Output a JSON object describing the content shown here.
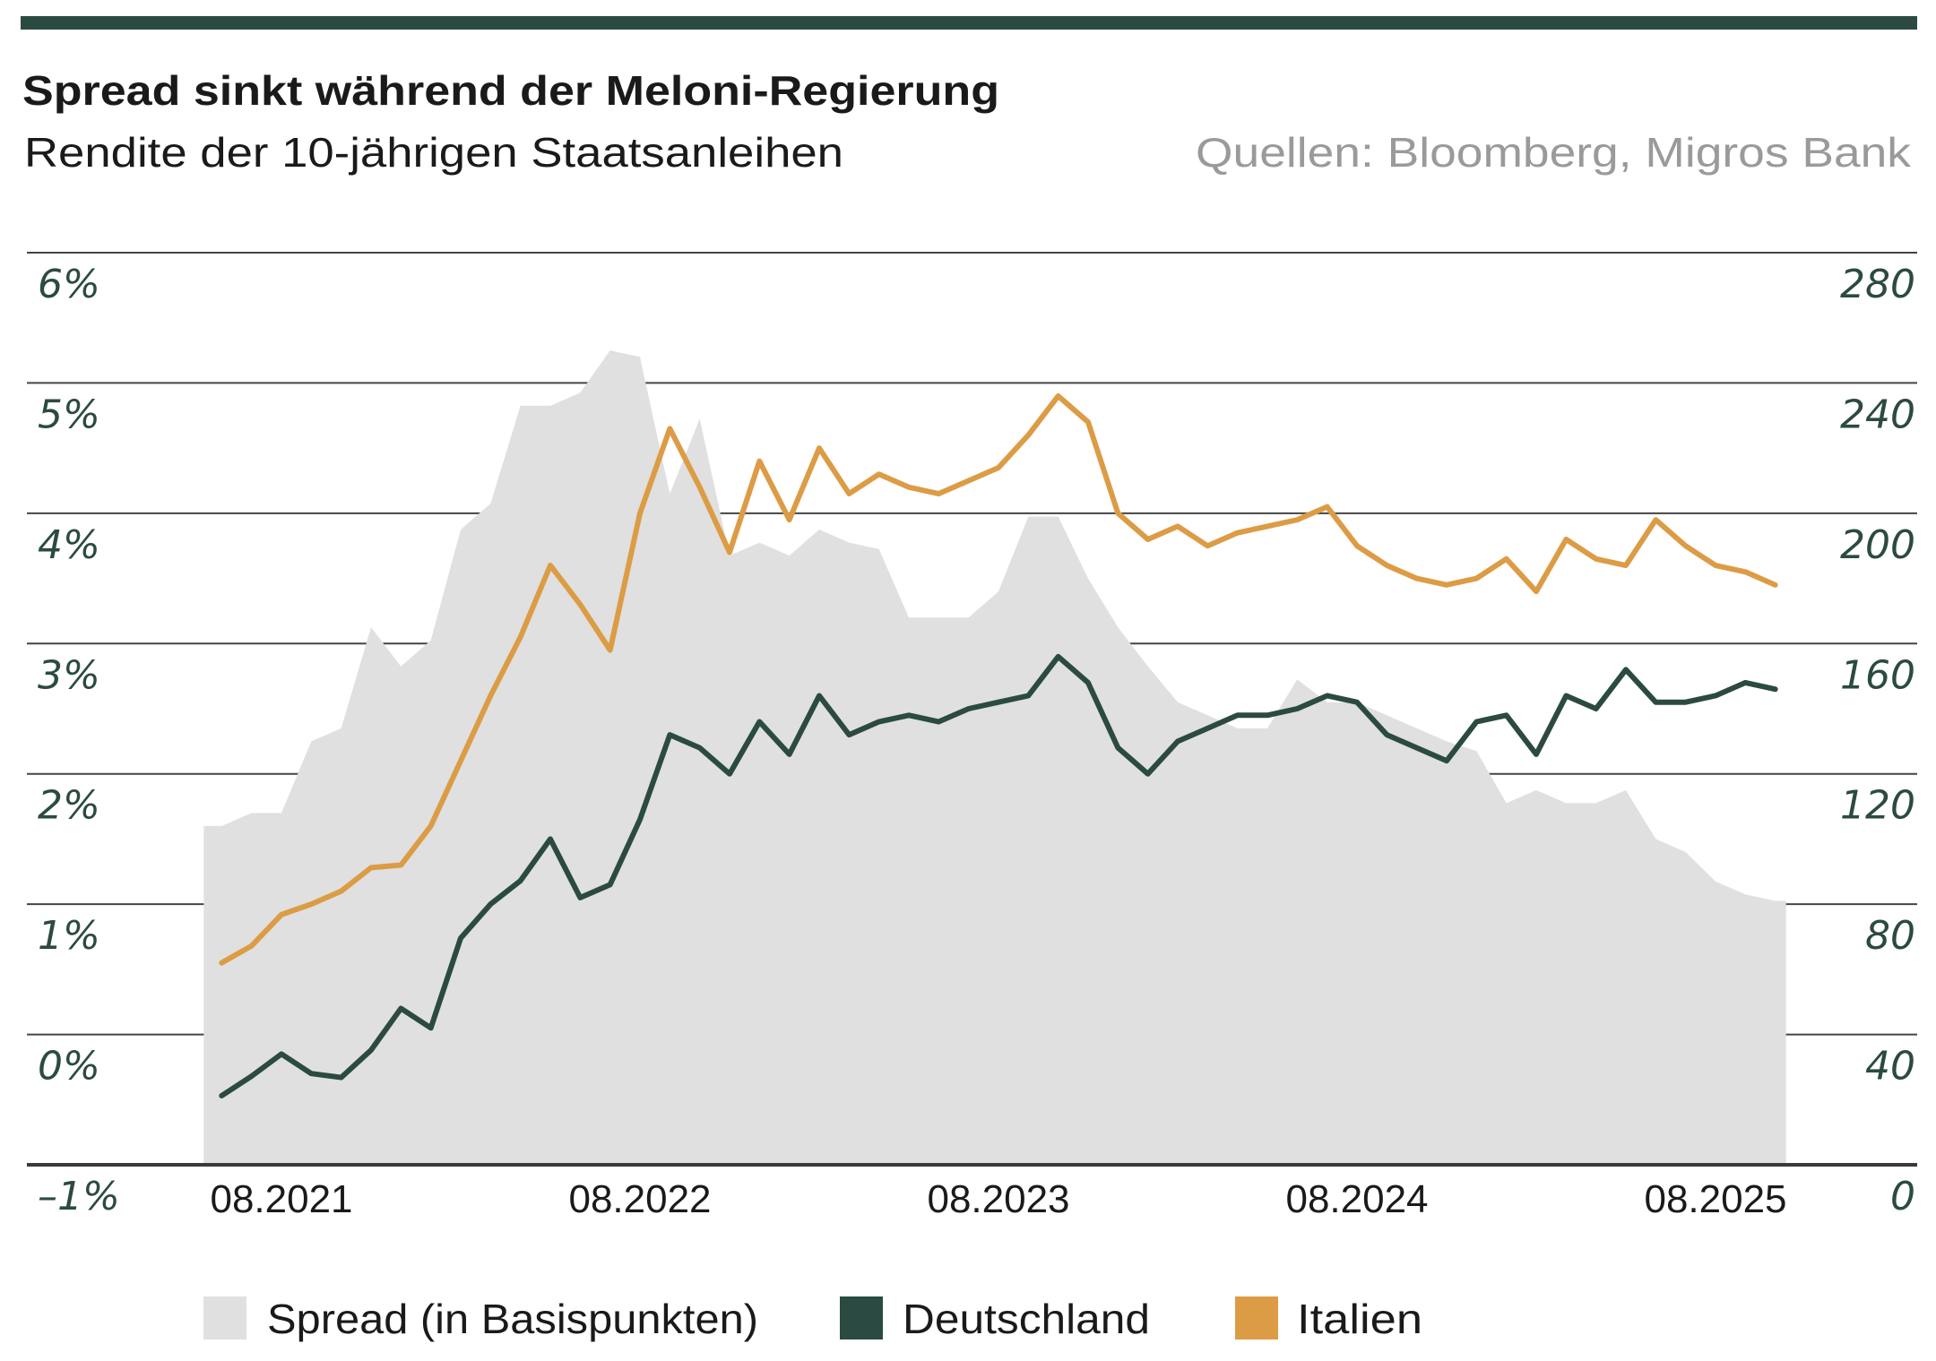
{
  "header": {
    "title": "Spread sinkt während der Meloni-Regierung",
    "subtitle": "Rendite der 10-jährigen Staatsanleihen",
    "source": "Quellen: Bloomberg, Migros Bank"
  },
  "colors": {
    "accent_bar": "#2b4a42",
    "deutschland": "#2b4a42",
    "italien": "#dc9c45",
    "spread": "#dfe0df",
    "axis_label": "#2b4a42"
  },
  "chart_data": {
    "type": "line",
    "title": "Spread sinkt während der Meloni-Regierung",
    "subtitle": "Rendite der 10-jährigen Staatsanleihen",
    "grid": true,
    "legend_position": "bottom-left",
    "y_left": {
      "ylim": [
        -1,
        6
      ],
      "ticks": [
        "6%",
        "5%",
        "4%",
        "3%",
        "2%",
        "1%",
        "0%",
        "–1%"
      ],
      "tick_values": [
        6,
        5,
        4,
        3,
        2,
        1,
        0,
        -1
      ]
    },
    "y_right": {
      "ylim": [
        0,
        280
      ],
      "ticks": [
        "280",
        "240",
        "200",
        "160",
        "120",
        "80",
        "40",
        "0"
      ],
      "tick_values": [
        280,
        240,
        200,
        160,
        120,
        80,
        40,
        0
      ]
    },
    "x_ticks": [
      "08.2021",
      "08.2022",
      "08.2023",
      "08.2024",
      "08.2025"
    ],
    "x_tick_dates": [
      "2021-08",
      "2022-08",
      "2023-08",
      "2024-08",
      "2025-08"
    ],
    "x": [
      "2021-06",
      "2021-07",
      "2021-08",
      "2021-09",
      "2021-10",
      "2021-11",
      "2021-12",
      "2022-01",
      "2022-02",
      "2022-03",
      "2022-04",
      "2022-05",
      "2022-06",
      "2022-07",
      "2022-08",
      "2022-09",
      "2022-10",
      "2022-11",
      "2022-12",
      "2023-01",
      "2023-02",
      "2023-03",
      "2023-04",
      "2023-05",
      "2023-06",
      "2023-07",
      "2023-08",
      "2023-09",
      "2023-10",
      "2023-11",
      "2023-12",
      "2024-01",
      "2024-02",
      "2024-03",
      "2024-04",
      "2024-05",
      "2024-06",
      "2024-07",
      "2024-08",
      "2024-09",
      "2024-10",
      "2024-11",
      "2024-12",
      "2025-01",
      "2025-02",
      "2025-03",
      "2025-04",
      "2025-05",
      "2025-06",
      "2025-07",
      "2025-08",
      "2025-09",
      "2025-10"
    ],
    "series": [
      {
        "name": "Spread (in Basispunkten)",
        "type": "area",
        "axis": "right",
        "values": [
          104,
          108,
          108,
          130,
          134,
          165,
          153,
          161,
          195,
          203,
          233,
          233,
          237,
          250,
          248,
          206,
          229,
          187,
          191,
          187,
          195,
          191,
          189,
          168,
          168,
          168,
          176,
          199,
          199,
          180,
          165,
          153,
          142,
          138,
          134,
          134,
          149,
          142,
          142,
          138,
          134,
          130,
          127,
          111,
          115,
          111,
          111,
          115,
          100,
          96,
          87,
          83,
          81
        ]
      },
      {
        "name": "Deutschland",
        "type": "line",
        "axis": "left",
        "values": [
          -0.47,
          -0.32,
          -0.15,
          -0.3,
          -0.33,
          -0.12,
          0.2,
          0.05,
          0.74,
          1.0,
          1.18,
          1.5,
          1.05,
          1.15,
          1.65,
          2.3,
          2.2,
          2.0,
          2.4,
          2.15,
          2.6,
          2.3,
          2.4,
          2.45,
          2.4,
          2.5,
          2.55,
          2.6,
          2.9,
          2.7,
          2.2,
          2.0,
          2.25,
          2.35,
          2.45,
          2.45,
          2.5,
          2.6,
          2.55,
          2.3,
          2.2,
          2.1,
          2.4,
          2.45,
          2.15,
          2.6,
          2.5,
          2.8,
          2.55,
          2.55,
          2.6,
          2.7,
          2.65
        ]
      },
      {
        "name": "Italien",
        "type": "line",
        "axis": "left",
        "values": [
          0.55,
          0.68,
          0.92,
          1.0,
          1.1,
          1.28,
          1.3,
          1.6,
          2.1,
          2.6,
          3.05,
          3.6,
          3.3,
          2.95,
          4.0,
          4.65,
          4.2,
          3.7,
          4.4,
          3.95,
          4.5,
          4.15,
          4.3,
          4.2,
          4.15,
          4.25,
          4.35,
          4.6,
          4.9,
          4.7,
          4.0,
          3.8,
          3.9,
          3.75,
          3.85,
          3.9,
          3.95,
          4.05,
          3.75,
          3.6,
          3.5,
          3.45,
          3.5,
          3.65,
          3.4,
          3.8,
          3.65,
          3.6,
          3.95,
          3.75,
          3.6,
          3.55,
          3.45
        ]
      }
    ]
  },
  "legend": {
    "items": [
      {
        "label": "Spread (in Basispunkten)"
      },
      {
        "label": "Deutschland"
      },
      {
        "label": "Italien"
      }
    ]
  }
}
